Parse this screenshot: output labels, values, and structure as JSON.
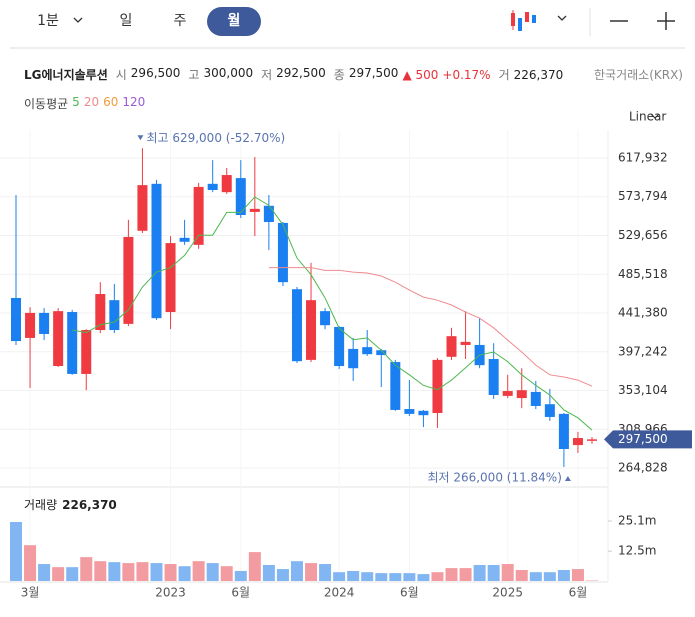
{
  "header": {
    "tabs": [
      "1분",
      "일",
      "주",
      "월"
    ],
    "active_tab": 3,
    "info": {
      "name": "LG에너지솔루션",
      "fields": [
        {
          "label": "시",
          "value": "296,500"
        },
        {
          "label": "고",
          "value": "300,000"
        },
        {
          "label": "저",
          "value": "292,500"
        },
        {
          "label": "종",
          "value": "297,500"
        }
      ],
      "change": "500",
      "change_pct": "+0.17%",
      "volume_label": "거",
      "volume": "226,370",
      "exchange": "한국거래소(KRX)"
    },
    "ma_label": "이동평균",
    "scale": "Linear"
  },
  "chart_data": [
    {
      "type": "candlestick",
      "up_color": "#ef3a42",
      "down_color": "#1a7ff0",
      "categories": [
        null,
        "3월",
        null,
        null,
        null,
        null,
        null,
        null,
        null,
        null,
        null,
        "2023",
        null,
        null,
        null,
        null,
        "6월",
        null,
        null,
        null,
        null,
        null,
        null,
        "2024",
        null,
        null,
        null,
        null,
        "6월",
        null,
        null,
        null,
        null,
        null,
        null,
        "2025",
        null,
        null,
        null,
        null,
        "6월",
        null
      ],
      "open": [
        458500,
        413000,
        441500,
        381000,
        442500,
        372000,
        422000,
        456000,
        429000,
        535000,
        588500,
        442500,
        527000,
        519000,
        588500,
        579000,
        595000,
        556500,
        563500,
        544000,
        468500,
        388000,
        443500,
        425500,
        400500,
        402500,
        399000,
        385500,
        332000,
        330000,
        327500,
        391500,
        405000,
        405000,
        389000,
        347000,
        344500,
        351500,
        337500,
        326500,
        291000,
        296500
      ],
      "high": [
        575800,
        448000,
        447000,
        447000,
        445000,
        423000,
        476500,
        474500,
        547500,
        629000,
        593000,
        529000,
        547500,
        589500,
        615500,
        606500,
        615500,
        619000,
        575800,
        545000,
        471000,
        498500,
        447000,
        426500,
        413000,
        422000,
        400500,
        388000,
        365000,
        331000,
        390000,
        424500,
        443500,
        435500,
        407000,
        371000,
        378500,
        364000,
        355000,
        327500,
        306000,
        300000
      ],
      "low": [
        405000,
        356000,
        410500,
        380000,
        371000,
        353500,
        418500,
        418500,
        426500,
        532500,
        433500,
        423000,
        519000,
        514500,
        579000,
        577000,
        549500,
        529000,
        513000,
        472000,
        384500,
        385500,
        423000,
        377500,
        364000,
        392500,
        357000,
        330000,
        324000,
        311500,
        310500,
        388000,
        389000,
        378500,
        343500,
        344500,
        333000,
        332000,
        318500,
        266000,
        282000,
        292500
      ],
      "close": [
        409500,
        441500,
        417500,
        443500,
        372000,
        422000,
        463000,
        422000,
        528000,
        587000,
        435500,
        521000,
        522500,
        585000,
        581500,
        598500,
        553000,
        560000,
        545000,
        476500,
        386500,
        456000,
        427500,
        381000,
        378500,
        394500,
        393500,
        331000,
        326500,
        325000,
        388000,
        415000,
        408500,
        382000,
        348000,
        352500,
        353500,
        335500,
        323000,
        286500,
        299000,
        297500
      ],
      "series": [
        {
          "name": "5",
          "color": "#4cb84f",
          "values": [
            null,
            null,
            null,
            null,
            422000,
            419000,
            428000,
            431000,
            445000,
            471000,
            488000,
            493000,
            507000,
            530000,
            530000,
            556000,
            556000,
            573500,
            564000,
            542000,
            504000,
            485000,
            458500,
            424000,
            411000,
            413000,
            399000,
            382000,
            371000,
            359000,
            354000,
            365000,
            379000,
            393500,
            397000,
            386000,
            371000,
            359000,
            348000,
            331000,
            322000,
            308000
          ]
        },
        {
          "name": "20",
          "color": "#f08a8e",
          "values": [
            null,
            null,
            null,
            null,
            null,
            null,
            null,
            null,
            null,
            null,
            null,
            null,
            null,
            null,
            null,
            null,
            null,
            null,
            493000,
            493000,
            493000,
            493000,
            490000,
            490000,
            488000,
            487000,
            483500,
            476500,
            467500,
            459500,
            456000,
            450500,
            442500,
            435500,
            424500,
            410500,
            397000,
            382000,
            371000,
            368500,
            365000,
            358000
          ]
        },
        {
          "name": "60",
          "color": "#f39a3c",
          "values": [
            null,
            null,
            null,
            null,
            null,
            null,
            null,
            null,
            null,
            null,
            null,
            null,
            null,
            null,
            null,
            null,
            null,
            null,
            null,
            null,
            null,
            null,
            null,
            null,
            null,
            null,
            null,
            null,
            null,
            null,
            null,
            null,
            null,
            null,
            null,
            null,
            null,
            null,
            null,
            null,
            null,
            null
          ]
        },
        {
          "name": "120",
          "color": "#9b5cd6",
          "values": [
            null,
            null,
            null,
            null,
            null,
            null,
            null,
            null,
            null,
            null,
            null,
            null,
            null,
            null,
            null,
            null,
            null,
            null,
            null,
            null,
            null,
            null,
            null,
            null,
            null,
            null,
            null,
            null,
            null,
            null,
            null,
            null,
            null,
            null,
            null,
            null,
            null,
            null,
            null,
            null,
            null,
            null
          ]
        }
      ],
      "ylim": [
        251200,
        649800
      ],
      "yticks": [
        {
          "value": 617932,
          "label": "617,932"
        },
        {
          "value": 573794,
          "label": "573,794"
        },
        {
          "value": 529656,
          "label": "529,656"
        },
        {
          "value": 485518,
          "label": "485,518"
        },
        {
          "value": 441380,
          "label": "441,380"
        },
        {
          "value": 397242,
          "label": "397,242"
        },
        {
          "value": 353104,
          "label": "353,104"
        },
        {
          "value": 308966,
          "label": "308,966"
        },
        {
          "value": 264828,
          "label": "264,828"
        }
      ],
      "grid": true,
      "current_price": {
        "value": 297500,
        "label": "297,500"
      },
      "annotations": [
        {
          "value": 629000,
          "label": "최고 629,000 (-52.70%)"
        },
        {
          "value": 266000,
          "label": "최저 266,000 (11.84%)"
        }
      ]
    },
    {
      "type": "bar",
      "title": "거래량",
      "up_color": "#f29ca1",
      "down_color": "#82b6f2",
      "values": [
        24700000,
        15000000,
        7100000,
        5800000,
        5800000,
        10000000,
        8300000,
        7900000,
        7500000,
        7900000,
        7500000,
        7100000,
        6200000,
        8300000,
        7500000,
        6200000,
        4200000,
        12100000,
        6700000,
        5000000,
        8300000,
        7500000,
        7100000,
        3700000,
        4200000,
        3700000,
        3300000,
        3300000,
        3300000,
        2900000,
        3700000,
        5400000,
        5400000,
        6700000,
        6700000,
        7100000,
        4600000,
        3700000,
        3700000,
        4600000,
        5000000,
        226370
      ],
      "ylim": [
        0,
        36000000
      ],
      "yticks": [
        {
          "value": 25100000,
          "label": "25.1m"
        },
        {
          "value": 12500000,
          "label": "12.5m"
        }
      ]
    }
  ]
}
